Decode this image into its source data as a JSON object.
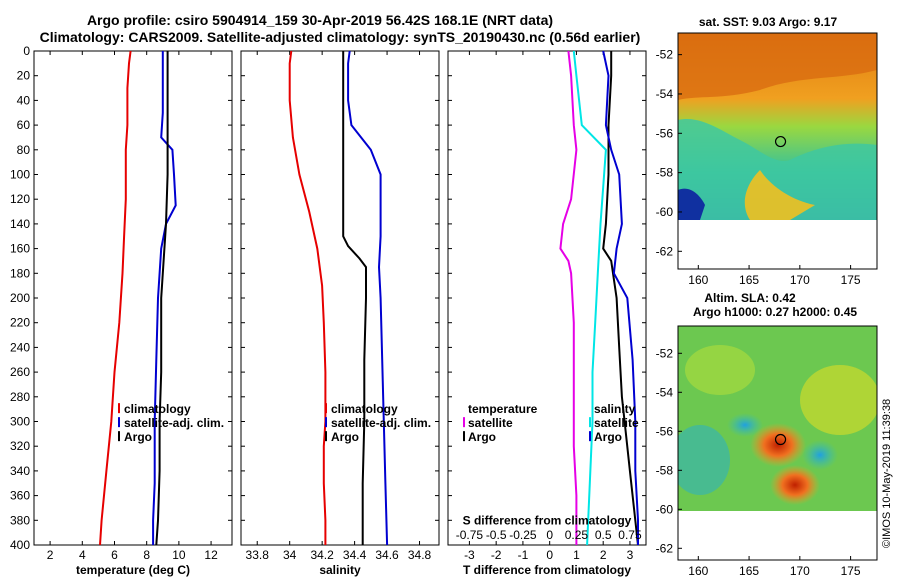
{
  "titles": {
    "line1": "Argo profile: csiro 5904914_159 30-Apr-2019 56.42S 168.1E (NRT data)",
    "line2": "Climatology: CARS2009. Satellite-adjusted climatology: synTS_20190430.nc (0.56d earlier)"
  },
  "colors": {
    "clim": "#e60000",
    "sat": "#0000d0",
    "argo": "#000000",
    "magenta": "#e600e6",
    "cyan": "#00e6e6"
  },
  "chart_data": [
    {
      "type": "line",
      "id": "temperature",
      "xlabel": "temperature (deg C)",
      "ylim": [
        0,
        400
      ],
      "xlim": [
        1,
        13.3
      ],
      "xticks": [
        2,
        4,
        6,
        8,
        10,
        12
      ],
      "yticks": [
        0,
        20,
        40,
        60,
        80,
        100,
        120,
        140,
        160,
        180,
        200,
        220,
        240,
        260,
        280,
        300,
        320,
        340,
        360,
        380,
        400
      ],
      "legend": [
        "climatology",
        "satellite-adj. clim.",
        "Argo"
      ],
      "series": [
        {
          "name": "climatology",
          "color": "clim",
          "x": [
            7.0,
            6.9,
            6.8,
            6.8,
            6.7,
            6.7,
            6.6,
            6.5,
            6.4,
            6.3,
            6.0,
            5.8,
            5.5,
            5.2,
            5.1
          ],
          "y": [
            0,
            10,
            30,
            60,
            80,
            120,
            150,
            180,
            200,
            220,
            260,
            300,
            340,
            380,
            400
          ]
        },
        {
          "name": "satellite-adj. clim.",
          "color": "sat",
          "x": [
            9.0,
            9.0,
            9.0,
            8.9,
            9.6,
            9.7,
            9.8,
            9.2,
            8.9,
            8.7,
            8.6,
            8.5,
            8.5,
            8.4,
            8.4
          ],
          "y": [
            0,
            20,
            50,
            70,
            80,
            100,
            125,
            140,
            160,
            200,
            250,
            300,
            350,
            380,
            400
          ]
        },
        {
          "name": "Argo",
          "color": "argo",
          "x": [
            9.3,
            9.3,
            9.3,
            9.3,
            9.2,
            9.1,
            9.0,
            8.9,
            8.9,
            8.8,
            8.8,
            8.7,
            8.6
          ],
          "y": [
            0,
            20,
            60,
            100,
            140,
            160,
            180,
            200,
            260,
            300,
            340,
            380,
            400
          ]
        }
      ]
    },
    {
      "type": "line",
      "id": "salinity",
      "xlabel": "salinity",
      "ylim": [
        0,
        400
      ],
      "xlim": [
        33.7,
        34.92
      ],
      "xticks": [
        33.8,
        34,
        34.2,
        34.4,
        34.6,
        34.8
      ],
      "xtick_labels": [
        "33.8",
        "34",
        "34.2",
        "34.4",
        "34.6",
        "34.8"
      ],
      "legend": [
        "climatology",
        "satellite-adj. clim.",
        "Argo"
      ],
      "series": [
        {
          "name": "climatology",
          "color": "clim",
          "x": [
            34.01,
            34.0,
            34.0,
            34.02,
            34.06,
            34.12,
            34.17,
            34.2,
            34.21,
            34.22,
            34.22,
            34.21,
            34.21,
            34.22,
            34.22
          ],
          "y": [
            0,
            10,
            40,
            70,
            100,
            130,
            160,
            190,
            220,
            260,
            300,
            320,
            350,
            380,
            400
          ]
        },
        {
          "name": "satellite-adj. clim.",
          "color": "sat",
          "x": [
            34.37,
            34.36,
            34.36,
            34.38,
            34.5,
            34.56,
            34.56,
            34.55,
            34.56,
            34.57,
            34.58,
            34.59,
            34.6
          ],
          "y": [
            0,
            10,
            40,
            60,
            80,
            100,
            150,
            175,
            200,
            250,
            300,
            350,
            400
          ]
        },
        {
          "name": "Argo",
          "color": "argo",
          "x": [
            34.33,
            34.33,
            34.33,
            34.33,
            34.33,
            34.36,
            34.43,
            34.47,
            34.47,
            34.46,
            34.46,
            34.45,
            34.45
          ],
          "y": [
            0,
            30,
            80,
            120,
            150,
            158,
            168,
            175,
            200,
            250,
            300,
            350,
            400
          ]
        }
      ]
    },
    {
      "type": "line",
      "id": "difference",
      "xlabel": "T difference from climatology",
      "xlabel2": "S difference from climatology",
      "ylim": [
        0,
        400
      ],
      "xlim": [
        -3.8,
        3.6
      ],
      "xticks": [
        -3,
        -2,
        -1,
        0,
        1,
        2,
        3
      ],
      "s_ticks": [
        "-0.75",
        "-0.5",
        "-0.25",
        "0",
        "0.25",
        "0.5",
        "0.75"
      ],
      "legend_left": [
        "temperature",
        "satellite",
        "Argo"
      ],
      "legend_right": [
        "salinity",
        "satellite",
        "Argo"
      ],
      "series": [
        {
          "name": "T satellite",
          "color": "magenta",
          "x": [
            0.7,
            0.8,
            0.9,
            1.0,
            0.8,
            0.5,
            0.4,
            0.7,
            0.8,
            0.9,
            0.9,
            0.9,
            1.0,
            1.0
          ],
          "y": [
            0,
            20,
            60,
            80,
            120,
            140,
            160,
            170,
            180,
            220,
            280,
            320,
            360,
            400
          ]
        },
        {
          "name": "S satellite",
          "color": "cyan",
          "x": [
            0.9,
            1.0,
            1.2,
            2.1,
            2.0,
            1.9,
            1.8,
            1.7,
            1.6,
            1.6,
            1.5,
            1.4
          ],
          "y": [
            0,
            20,
            60,
            80,
            110,
            140,
            180,
            220,
            260,
            300,
            350,
            400
          ]
        },
        {
          "name": "T Argo",
          "color": "argo",
          "x": [
            2.3,
            2.3,
            2.2,
            2.2,
            2.1,
            2.0,
            2.3,
            2.5,
            2.6,
            2.7,
            2.8,
            3.0,
            3.2,
            3.3
          ],
          "y": [
            0,
            20,
            60,
            100,
            140,
            160,
            170,
            200,
            240,
            280,
            300,
            340,
            380,
            400
          ]
        },
        {
          "name": "S Argo",
          "color": "sat",
          "x": [
            2.0,
            2.2,
            2.1,
            2.3,
            2.6,
            2.7,
            2.5,
            2.4,
            2.9,
            3.1,
            3.2,
            3.2,
            3.3,
            3.3
          ],
          "y": [
            0,
            20,
            60,
            80,
            100,
            140,
            160,
            180,
            200,
            250,
            300,
            340,
            380,
            400
          ]
        }
      ]
    }
  ],
  "maps": [
    {
      "id": "sst-map",
      "title": "sat. SST: 9.03 Argo: 9.17",
      "title2": "",
      "xticks": [
        "160",
        "165",
        "170",
        "175"
      ],
      "yticks": [
        "-52",
        "-54",
        "-56",
        "-58",
        "-60",
        "-62"
      ],
      "float_lon": 168.1,
      "float_lat": -56.42
    },
    {
      "id": "sla-map",
      "title": "Altim. SLA: 0.42",
      "title2": "Argo h1000: 0.27 h2000: 0.45",
      "xticks": [
        "160",
        "165",
        "170",
        "175"
      ],
      "yticks": [
        "-52",
        "-54",
        "-56",
        "-58",
        "-60",
        "-62"
      ],
      "float_lon": 168.1,
      "float_lat": -56.42
    }
  ],
  "stamp": "©IMOS 10-May-2019 11:39:38"
}
